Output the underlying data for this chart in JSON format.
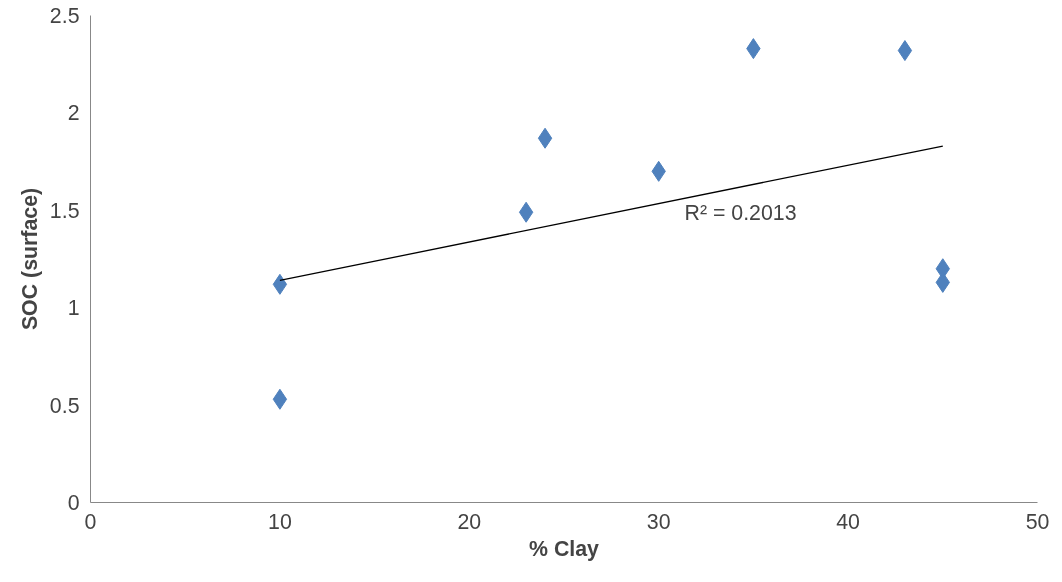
{
  "chart_data": {
    "type": "scatter",
    "xlabel": "% Clay",
    "ylabel": "SOC (surface)",
    "xlim": [
      0,
      50
    ],
    "xticks": [
      0,
      10,
      20,
      30,
      40,
      50
    ],
    "ylim": [
      0,
      2.5
    ],
    "yticks": [
      0,
      0.5,
      1,
      1.5,
      2,
      2.5
    ],
    "marker": "diamond",
    "annotations": [
      "R² = 0.2013"
    ],
    "series": [
      {
        "color": "#4f81bd",
        "x": [
          10,
          10,
          23,
          24,
          30,
          35,
          43,
          45,
          45
        ],
        "values": [
          1.12,
          0.53,
          1.49,
          1.87,
          1.7,
          2.33,
          2.32,
          1.2,
          1.13
        ]
      },
      {
        "type": "line",
        "color": "#000000",
        "x": [
          10,
          45
        ],
        "values": [
          1.14,
          1.83
        ],
        "marker": "none",
        "line_style": "solid"
      }
    ]
  }
}
